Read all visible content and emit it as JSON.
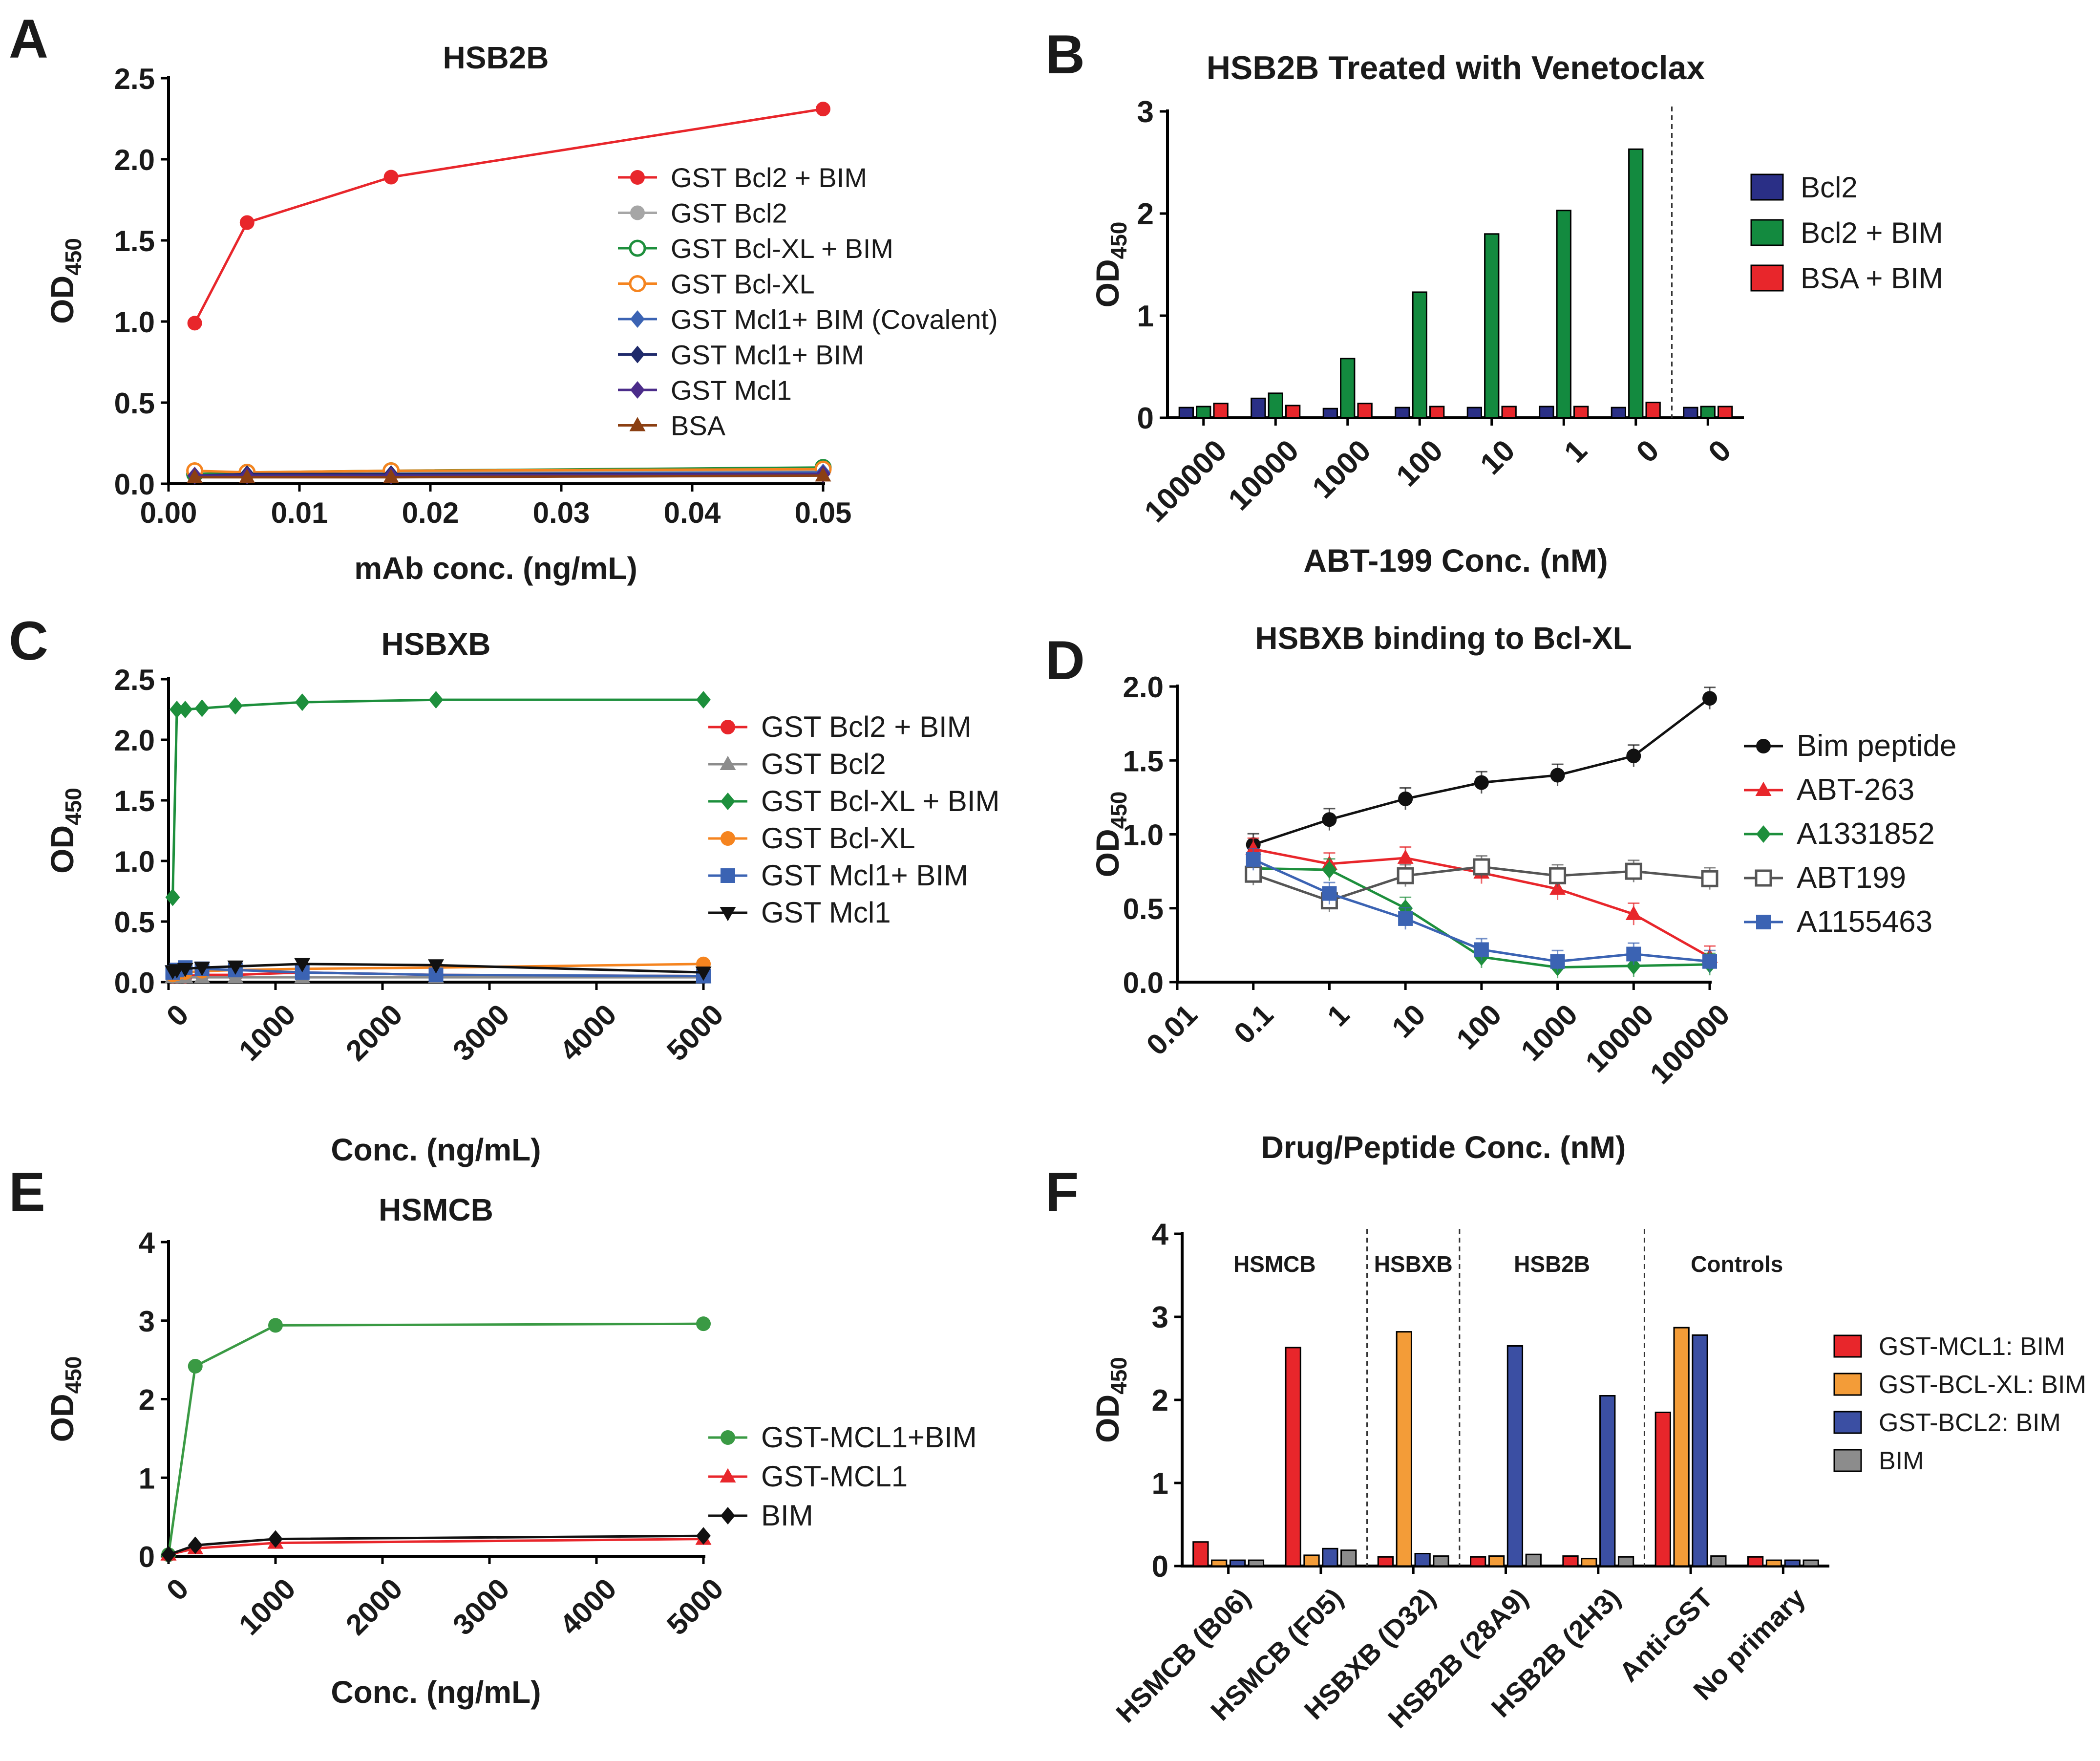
{
  "panels": {
    "A": {
      "letter": "A",
      "chart_data": {
        "type": "line",
        "title": "HSB2B",
        "xlabel": "mAb conc.  (ng/mL)",
        "ylabel_main": "OD",
        "ylabel_sub": "450",
        "xlim": [
          0,
          0.05
        ],
        "ylim": [
          0,
          2.5
        ],
        "xticks": [
          "0.00",
          "0.01",
          "0.02",
          "0.03",
          "0.04",
          "0.05"
        ],
        "yticks": [
          "0.0",
          "0.5",
          "1.0",
          "1.5",
          "2.0",
          "2.5"
        ],
        "x": [
          0.002,
          0.006,
          0.017,
          0.05
        ],
        "series": [
          {
            "name": "GST Bcl2 + BIM",
            "color": "#e8262b",
            "marker": "circle",
            "values": [
              0.99,
              1.61,
              1.89,
              2.31
            ]
          },
          {
            "name": "GST Bcl2",
            "color": "#a6a6a6",
            "marker": "circle",
            "values": [
              0.05,
              0.07,
              0.07,
              0.08
            ]
          },
          {
            "name": "GST Bcl-XL + BIM",
            "color": "#1d8f3c",
            "marker": "circle-open",
            "values": [
              0.06,
              0.07,
              0.08,
              0.1
            ]
          },
          {
            "name": "GST Bcl-XL",
            "color": "#f5841f",
            "marker": "circle-open",
            "values": [
              0.08,
              0.07,
              0.08,
              0.09
            ]
          },
          {
            "name": "GST Mcl1+ BIM (Covalent)",
            "color": "#3b63b3",
            "marker": "diamond",
            "values": [
              0.05,
              0.06,
              0.06,
              0.07
            ]
          },
          {
            "name": "GST Mcl1+ BIM",
            "color": "#1f2a6b",
            "marker": "diamond",
            "values": [
              0.05,
              0.06,
              0.06,
              0.06
            ]
          },
          {
            "name": "GST Mcl1",
            "color": "#4b2c8a",
            "marker": "diamond",
            "values": [
              0.05,
              0.05,
              0.05,
              0.06
            ]
          },
          {
            "name": "BSA",
            "color": "#8b3f12",
            "marker": "triangle",
            "values": [
              0.04,
              0.04,
              0.04,
              0.05
            ]
          }
        ]
      }
    },
    "B": {
      "letter": "B",
      "chart_data": {
        "type": "bar",
        "title": "HSB2B Treated with Venetoclax",
        "xlabel": "ABT-199 Conc. (nM)",
        "ylabel_main": "OD",
        "ylabel_sub": "450",
        "ylim": [
          0,
          3
        ],
        "yticks": [
          "0",
          "1",
          "2",
          "3"
        ],
        "categories": [
          "100000",
          "10000",
          "1000",
          "100",
          "10",
          "1",
          "0",
          "0"
        ],
        "series": [
          {
            "name": "Bcl2",
            "color": "#2a2f86",
            "values": [
              0.1,
              0.19,
              0.09,
              0.1,
              0.1,
              0.11,
              0.1,
              0.1
            ]
          },
          {
            "name": "Bcl2 + BIM",
            "color": "#138a3f",
            "values": [
              0.11,
              0.24,
              0.58,
              1.23,
              1.8,
              2.03,
              2.63,
              0.11
            ]
          },
          {
            "name": "BSA + BIM",
            "color": "#e8262b",
            "values": [
              0.14,
              0.12,
              0.14,
              0.11,
              0.11,
              0.11,
              0.15,
              0.11
            ]
          }
        ]
      }
    },
    "C": {
      "letter": "C",
      "chart_data": {
        "type": "line",
        "title": "HSBXB",
        "xlabel": "Conc. (ng/mL)",
        "ylabel_main": "OD",
        "ylabel_sub": "450",
        "xlim": [
          0,
          5000
        ],
        "ylim": [
          0,
          2.5
        ],
        "xticks": [
          "0",
          "1000",
          "2000",
          "3000",
          "4000",
          "5000"
        ],
        "yticks": [
          "0.0",
          "0.5",
          "1.0",
          "1.5",
          "2.0",
          "2.5"
        ],
        "x": [
          39,
          78,
          156,
          313,
          625,
          1250,
          2500,
          5000
        ],
        "series": [
          {
            "name": "GST Bcl2 + BIM",
            "color": "#e8262b",
            "marker": "circle",
            "values": [
              0.05,
              0.05,
              0.05,
              0.06,
              0.06,
              0.08,
              0.06,
              0.05
            ]
          },
          {
            "name": "GST Bcl2",
            "color": "#8c8c8c",
            "marker": "triangle",
            "values": [
              0.04,
              0.04,
              0.04,
              0.04,
              0.04,
              0.04,
              0.04,
              0.04
            ]
          },
          {
            "name": "GST Bcl-XL + BIM",
            "color": "#1d8f3c",
            "marker": "diamond",
            "values": [
              0.7,
              2.25,
              2.25,
              2.26,
              2.28,
              2.31,
              2.33,
              2.33
            ]
          },
          {
            "name": "GST Bcl-XL",
            "color": "#f5841f",
            "marker": "circle",
            "values": [
              0.06,
              0.07,
              0.08,
              0.09,
              0.1,
              0.11,
              0.12,
              0.15
            ]
          },
          {
            "name": "GST Mcl1+ BIM",
            "color": "#3b63b3",
            "marker": "square",
            "values": [
              0.08,
              0.1,
              0.12,
              0.11,
              0.1,
              0.08,
              0.06,
              0.05
            ]
          },
          {
            "name": "GST Mcl1",
            "color": "#111111",
            "marker": "triangle-down",
            "values": [
              0.09,
              0.1,
              0.11,
              0.12,
              0.13,
              0.15,
              0.14,
              0.08
            ]
          }
        ]
      }
    },
    "D": {
      "letter": "D",
      "chart_data": {
        "type": "line",
        "title": "HSBXB binding to Bcl-XL",
        "xlabel": "Drug/Peptide Conc. (nM)",
        "ylabel_main": "OD",
        "ylabel_sub": "450",
        "xscale": "log",
        "xlim": [
          0.01,
          100000
        ],
        "ylim": [
          0,
          2.0
        ],
        "xticks": [
          "0.01",
          "0.1",
          "1",
          "10",
          "100",
          "1000",
          "10000",
          "100000"
        ],
        "yticks": [
          "0.0",
          "0.5",
          "1.0",
          "1.5",
          "2.0"
        ],
        "x": [
          0.1,
          1,
          10,
          100,
          1000,
          10000,
          100000
        ],
        "series": [
          {
            "name": "Bim peptide",
            "color": "#111111",
            "marker": "circle",
            "values": [
              0.93,
              1.1,
              1.24,
              1.35,
              1.4,
              1.53,
              1.92
            ]
          },
          {
            "name": "ABT-263",
            "color": "#e8262b",
            "marker": "triangle",
            "values": [
              0.9,
              0.8,
              0.84,
              0.74,
              0.63,
              0.46,
              0.17
            ]
          },
          {
            "name": "A1331852",
            "color": "#1d8f3c",
            "marker": "diamond",
            "values": [
              0.77,
              0.76,
              0.5,
              0.17,
              0.1,
              0.11,
              0.12
            ]
          },
          {
            "name": "ABT199",
            "color": "#555555",
            "marker": "square-open",
            "values": [
              0.73,
              0.55,
              0.72,
              0.78,
              0.72,
              0.75,
              0.7
            ]
          },
          {
            "name": "A1155463",
            "color": "#3b63b3",
            "marker": "square",
            "values": [
              0.83,
              0.6,
              0.43,
              0.22,
              0.14,
              0.19,
              0.14
            ]
          }
        ]
      }
    },
    "E": {
      "letter": "E",
      "chart_data": {
        "type": "line",
        "title": "HSMCB",
        "xlabel": "Conc. (ng/mL)",
        "ylabel_main": "OD",
        "ylabel_sub": "450",
        "xlim": [
          0,
          5000
        ],
        "ylim": [
          0,
          4
        ],
        "xticks": [
          "0",
          "1000",
          "2000",
          "3000",
          "4000",
          "5000"
        ],
        "yticks": [
          "0",
          "1",
          "2",
          "3",
          "4"
        ],
        "x": [
          0,
          250,
          1000,
          5000
        ],
        "series": [
          {
            "name": "GST-MCL1+BIM",
            "color": "#3a9a44",
            "marker": "circle",
            "values": [
              0.02,
              2.42,
              2.94,
              2.96
            ]
          },
          {
            "name": "GST-MCL1",
            "color": "#e8262b",
            "marker": "triangle",
            "values": [
              0.02,
              0.1,
              0.17,
              0.22
            ]
          },
          {
            "name": "BIM",
            "color": "#111111",
            "marker": "diamond",
            "values": [
              0.02,
              0.14,
              0.22,
              0.26
            ]
          }
        ]
      }
    },
    "F": {
      "letter": "F",
      "chart_data": {
        "type": "bar",
        "title": "",
        "xlabel": "",
        "ylabel_main": "OD",
        "ylabel_sub": "450",
        "ylim": [
          0,
          4
        ],
        "yticks": [
          "0",
          "1",
          "2",
          "3",
          "4"
        ],
        "categories": [
          "HSMCB (B06)",
          "HSMCB (F05)",
          "HSBXB (D32)",
          "HSB2B (28A9)",
          "HSB2B (2H3)",
          "Anti-GST",
          "No primary"
        ],
        "groups": [
          "HSMCB",
          "HSBXB",
          "HSB2B",
          "Controls"
        ],
        "series": [
          {
            "name": "GST-MCL1: BIM",
            "color": "#e8262b",
            "values": [
              0.29,
              2.63,
              0.11,
              0.11,
              0.12,
              1.85,
              0.11
            ]
          },
          {
            "name": "GST-BCL-XL: BIM",
            "color": "#f39c38",
            "values": [
              0.07,
              0.13,
              2.82,
              0.12,
              0.09,
              2.87,
              0.07
            ]
          },
          {
            "name": "GST-BCL2: BIM",
            "color": "#3b4fa3",
            "values": [
              0.07,
              0.21,
              0.15,
              2.65,
              2.05,
              2.78,
              0.07
            ]
          },
          {
            "name": "BIM",
            "color": "#8c8c8c",
            "values": [
              0.07,
              0.19,
              0.12,
              0.14,
              0.11,
              0.12,
              0.07
            ]
          }
        ]
      }
    }
  }
}
